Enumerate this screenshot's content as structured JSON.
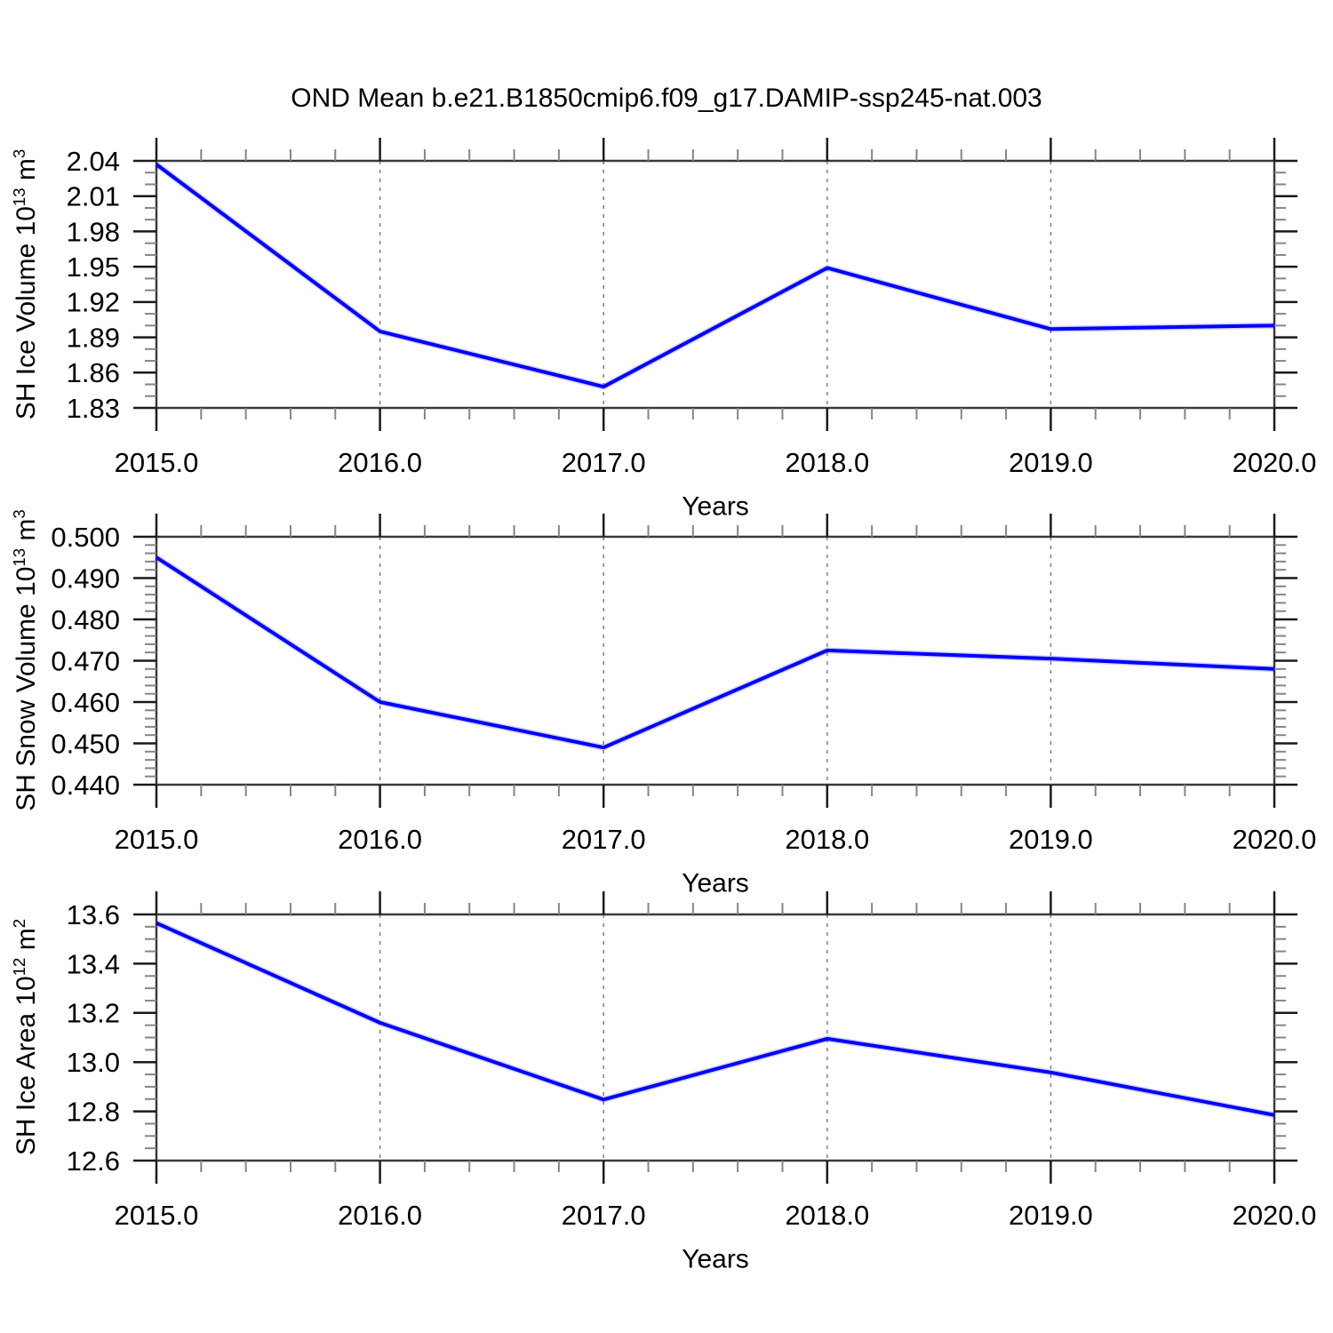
{
  "title": "OND Mean b.e21.B1850cmip6.f09_g17.DAMIP-ssp245-nat.003",
  "line_color": "#0000ff",
  "chart_data": [
    {
      "type": "line",
      "x": [
        2015,
        2016,
        2017,
        2018,
        2019,
        2020
      ],
      "values": [
        2.037,
        1.895,
        1.848,
        1.949,
        1.897,
        1.9
      ],
      "x_tick_labels": [
        "2015.0",
        "2016.0",
        "2017.0",
        "2018.0",
        "2019.0",
        "2020.0"
      ],
      "xlabel": "Years",
      "xlim": [
        2015,
        2020
      ],
      "x_minor_step": 0.2,
      "ylabel": "SH Ice Volume 10^13 m^3",
      "ylabel_parts": {
        "base": "SH Ice Volume 10",
        "exp": "13",
        "unit": " m",
        "unit_exp": "3"
      },
      "ylim": [
        1.83,
        2.04
      ],
      "y_major_ticks": [
        1.83,
        1.86,
        1.89,
        1.92,
        1.95,
        1.98,
        2.01,
        2.04
      ],
      "y_tick_labels": [
        "1.83",
        "1.86",
        "1.89",
        "1.92",
        "1.95",
        "1.98",
        "2.01",
        "2.04"
      ],
      "y_minor_step": 0.01,
      "grid_x": [
        2016,
        2017,
        2018,
        2019
      ],
      "grid": "vertical-dashed",
      "legend": "none"
    },
    {
      "type": "line",
      "x": [
        2015,
        2016,
        2017,
        2018,
        2019,
        2020
      ],
      "values": [
        0.495,
        0.46,
        0.449,
        0.4725,
        0.4705,
        0.468
      ],
      "x_tick_labels": [
        "2015.0",
        "2016.0",
        "2017.0",
        "2018.0",
        "2019.0",
        "2020.0"
      ],
      "xlabel": "Years",
      "xlim": [
        2015,
        2020
      ],
      "x_minor_step": 0.2,
      "ylabel": "SH Snow Volume 10^13 m^3",
      "ylabel_parts": {
        "base": "SH Snow Volume 10",
        "exp": "13",
        "unit": " m",
        "unit_exp": "3"
      },
      "ylim": [
        0.44,
        0.5
      ],
      "y_major_ticks": [
        0.44,
        0.45,
        0.46,
        0.47,
        0.48,
        0.49,
        0.5
      ],
      "y_tick_labels": [
        "0.440",
        "0.450",
        "0.460",
        "0.470",
        "0.480",
        "0.490",
        "0.500"
      ],
      "y_minor_step": 0.002,
      "grid_x": [
        2016,
        2017,
        2018,
        2019
      ],
      "grid": "vertical-dashed",
      "legend": "none"
    },
    {
      "type": "line",
      "x": [
        2015,
        2016,
        2017,
        2018,
        2019,
        2020
      ],
      "values": [
        13.565,
        13.16,
        12.848,
        13.095,
        12.958,
        12.785
      ],
      "x_tick_labels": [
        "2015.0",
        "2016.0",
        "2017.0",
        "2018.0",
        "2019.0",
        "2020.0"
      ],
      "xlabel": "Years",
      "xlim": [
        2015,
        2020
      ],
      "x_minor_step": 0.2,
      "ylabel": "SH Ice Area 10^12 m^2",
      "ylabel_parts": {
        "base": "SH Ice Area 10",
        "exp": "12",
        "unit": " m",
        "unit_exp": "2"
      },
      "ylim": [
        12.6,
        13.6
      ],
      "y_major_ticks": [
        12.6,
        12.8,
        13.0,
        13.2,
        13.4,
        13.6
      ],
      "y_tick_labels": [
        "12.6",
        "12.8",
        "13.0",
        "13.2",
        "13.4",
        "13.6"
      ],
      "y_minor_step": 0.05,
      "grid_x": [
        2016,
        2017,
        2018,
        2019
      ],
      "grid": "vertical-dashed",
      "legend": "none"
    }
  ]
}
